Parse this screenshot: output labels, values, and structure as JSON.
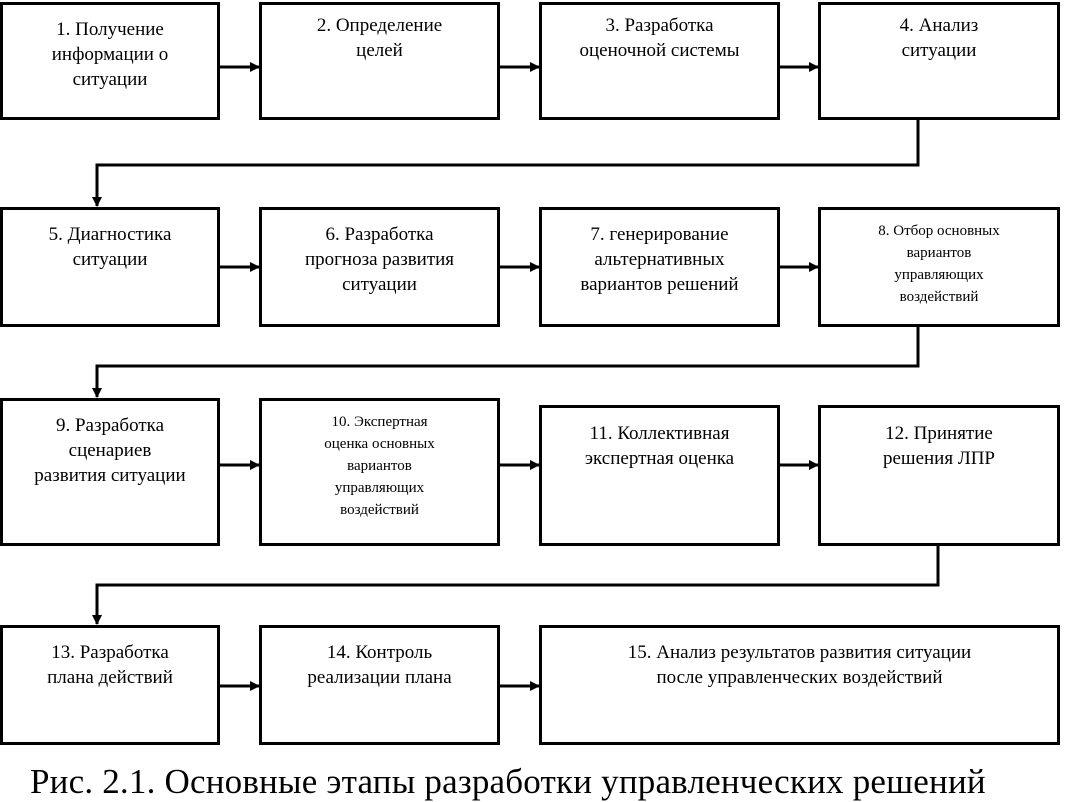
{
  "steps": [
    {
      "text": "1. Получение\nинформации о\nситуации"
    },
    {
      "text": "2. Определение\nцелей"
    },
    {
      "text": "3. Разработка\nоценочной системы"
    },
    {
      "text": "4. Анализ\nситуации"
    },
    {
      "text": "5. Диагностика\nситуации"
    },
    {
      "text": "6. Разработка\nпрогноза развития\nситуации"
    },
    {
      "text": "7. генерирование\nальтернативных\nвариантов решений"
    },
    {
      "text": "8. Отбор основных\nвариантов\nуправляющих\nвоздействий"
    },
    {
      "text": "9. Разработка\nсценариев\nразвития ситуации"
    },
    {
      "text": "10. Экспертная\nоценка основных\nвариантов\nуправляющих\nвоздействий"
    },
    {
      "text": "11. Коллективная\nэкспертная  оценка"
    },
    {
      "text": "12. Принятие\nрешения ЛПР"
    },
    {
      "text": "13. Разработка\nплана действий"
    },
    {
      "text": "14. Контроль\nреализации плана"
    },
    {
      "text": "15. Анализ результатов развития ситуации\nпосле управленческих воздействий"
    }
  ],
  "caption": "Рис. 2.1. Основные этапы разработки управленческих решений"
}
